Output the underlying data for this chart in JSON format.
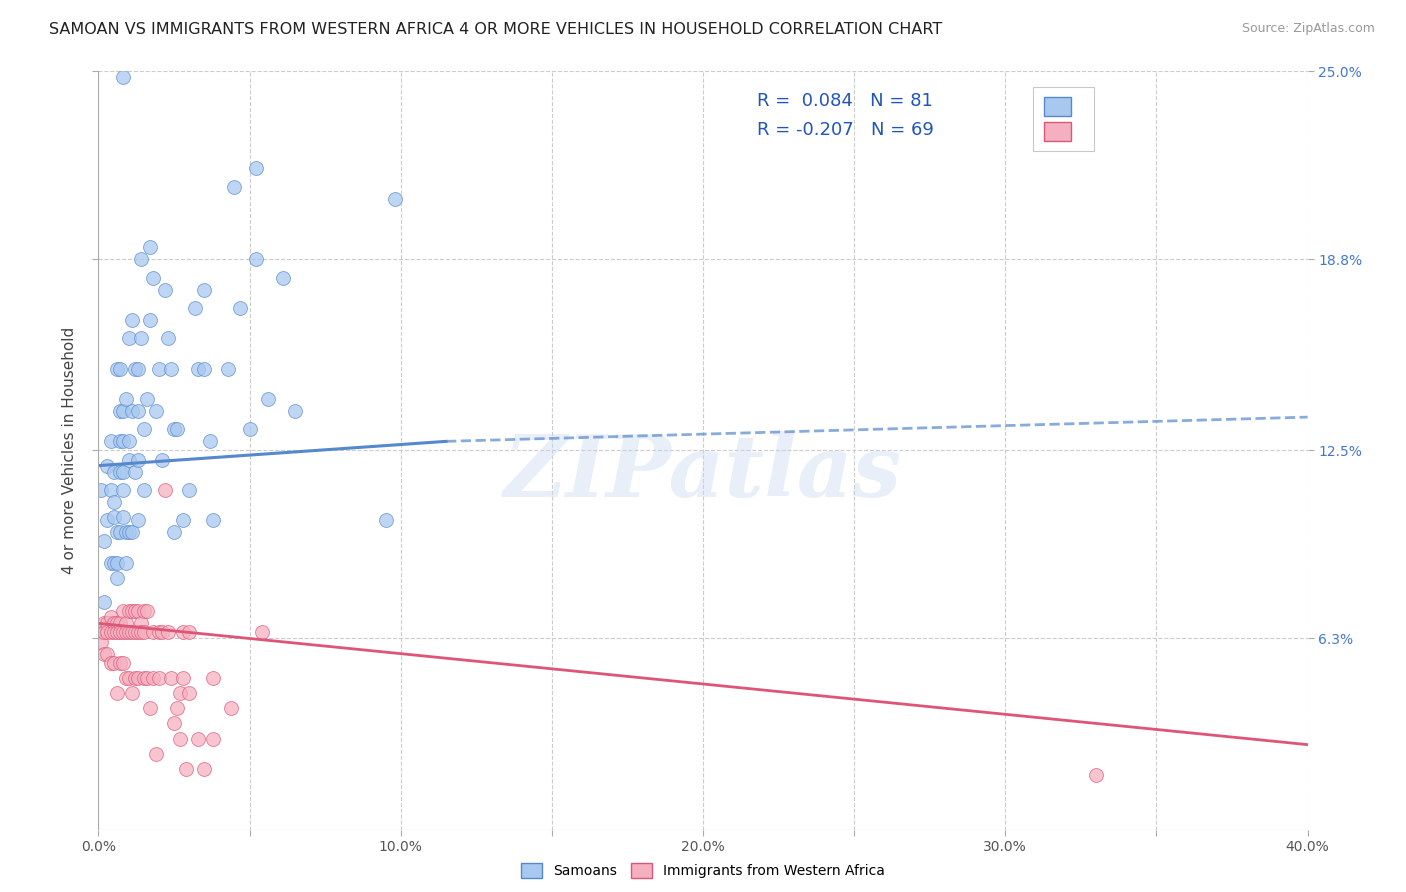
{
  "title": "SAMOAN VS IMMIGRANTS FROM WESTERN AFRICA 4 OR MORE VEHICLES IN HOUSEHOLD CORRELATION CHART",
  "source": "Source: ZipAtlas.com",
  "ylabel": "4 or more Vehicles in Household",
  "xlim": [
    0.0,
    0.4
  ],
  "ylim": [
    0.0,
    0.25
  ],
  "xtick_labels": [
    "0.0%",
    "",
    "10.0%",
    "",
    "20.0%",
    "",
    "30.0%",
    "",
    "40.0%"
  ],
  "xtick_values": [
    0.0,
    0.05,
    0.1,
    0.15,
    0.2,
    0.25,
    0.3,
    0.35,
    0.4
  ],
  "ytick_labels": [
    "6.3%",
    "12.5%",
    "18.8%",
    "25.0%"
  ],
  "ytick_values": [
    0.063,
    0.125,
    0.188,
    0.25
  ],
  "blue_R": 0.084,
  "blue_N": 81,
  "pink_R": -0.207,
  "pink_N": 69,
  "blue_color": "#a8c8f0",
  "pink_color": "#f5b0c0",
  "blue_edge_color": "#5588cc",
  "pink_edge_color": "#dd5577",
  "blue_trend_solid": [
    0.0,
    0.12,
    0.115,
    0.128
  ],
  "blue_trend_dashed": [
    0.115,
    0.128,
    0.4,
    0.136
  ],
  "pink_trend": [
    0.0,
    0.068,
    0.4,
    0.028
  ],
  "watermark": "ZIPatlas",
  "legend_blue_label": "Samoans",
  "legend_pink_label": "Immigrants from Western Africa",
  "background_color": "#ffffff",
  "grid_color": "#cccccc",
  "blue_scatter": [
    [
      0.001,
      0.112
    ],
    [
      0.002,
      0.095
    ],
    [
      0.002,
      0.075
    ],
    [
      0.003,
      0.12
    ],
    [
      0.003,
      0.102
    ],
    [
      0.004,
      0.128
    ],
    [
      0.004,
      0.088
    ],
    [
      0.004,
      0.068
    ],
    [
      0.004,
      0.112
    ],
    [
      0.005,
      0.108
    ],
    [
      0.005,
      0.103
    ],
    [
      0.005,
      0.088
    ],
    [
      0.005,
      0.118
    ],
    [
      0.006,
      0.098
    ],
    [
      0.006,
      0.088
    ],
    [
      0.006,
      0.083
    ],
    [
      0.006,
      0.152
    ],
    [
      0.007,
      0.138
    ],
    [
      0.007,
      0.128
    ],
    [
      0.007,
      0.118
    ],
    [
      0.007,
      0.098
    ],
    [
      0.007,
      0.152
    ],
    [
      0.008,
      0.138
    ],
    [
      0.008,
      0.128
    ],
    [
      0.008,
      0.118
    ],
    [
      0.008,
      0.103
    ],
    [
      0.008,
      0.112
    ],
    [
      0.009,
      0.098
    ],
    [
      0.009,
      0.088
    ],
    [
      0.009,
      0.142
    ],
    [
      0.01,
      0.122
    ],
    [
      0.01,
      0.098
    ],
    [
      0.01,
      0.162
    ],
    [
      0.01,
      0.128
    ],
    [
      0.011,
      0.098
    ],
    [
      0.011,
      0.168
    ],
    [
      0.011,
      0.138
    ],
    [
      0.012,
      0.152
    ],
    [
      0.012,
      0.118
    ],
    [
      0.013,
      0.122
    ],
    [
      0.013,
      0.102
    ],
    [
      0.013,
      0.152
    ],
    [
      0.013,
      0.138
    ],
    [
      0.014,
      0.188
    ],
    [
      0.014,
      0.162
    ],
    [
      0.015,
      0.112
    ],
    [
      0.015,
      0.132
    ],
    [
      0.016,
      0.142
    ],
    [
      0.017,
      0.192
    ],
    [
      0.017,
      0.168
    ],
    [
      0.018,
      0.182
    ],
    [
      0.019,
      0.138
    ],
    [
      0.02,
      0.152
    ],
    [
      0.021,
      0.122
    ],
    [
      0.022,
      0.178
    ],
    [
      0.023,
      0.162
    ],
    [
      0.024,
      0.152
    ],
    [
      0.025,
      0.132
    ],
    [
      0.025,
      0.098
    ],
    [
      0.026,
      0.132
    ],
    [
      0.028,
      0.102
    ],
    [
      0.03,
      0.112
    ],
    [
      0.032,
      0.172
    ],
    [
      0.033,
      0.152
    ],
    [
      0.035,
      0.178
    ],
    [
      0.035,
      0.152
    ],
    [
      0.037,
      0.128
    ],
    [
      0.038,
      0.102
    ],
    [
      0.043,
      0.152
    ],
    [
      0.045,
      0.212
    ],
    [
      0.047,
      0.172
    ],
    [
      0.05,
      0.132
    ],
    [
      0.052,
      0.218
    ],
    [
      0.052,
      0.188
    ],
    [
      0.056,
      0.142
    ],
    [
      0.008,
      0.248
    ],
    [
      0.061,
      0.182
    ],
    [
      0.065,
      0.138
    ],
    [
      0.095,
      0.102
    ],
    [
      0.098,
      0.208
    ]
  ],
  "pink_scatter": [
    [
      0.001,
      0.065
    ],
    [
      0.001,
      0.062
    ],
    [
      0.002,
      0.068
    ],
    [
      0.002,
      0.065
    ],
    [
      0.002,
      0.058
    ],
    [
      0.003,
      0.068
    ],
    [
      0.003,
      0.065
    ],
    [
      0.003,
      0.058
    ],
    [
      0.004,
      0.07
    ],
    [
      0.004,
      0.065
    ],
    [
      0.004,
      0.055
    ],
    [
      0.005,
      0.068
    ],
    [
      0.005,
      0.065
    ],
    [
      0.005,
      0.055
    ],
    [
      0.006,
      0.068
    ],
    [
      0.006,
      0.065
    ],
    [
      0.006,
      0.045
    ],
    [
      0.007,
      0.068
    ],
    [
      0.007,
      0.065
    ],
    [
      0.007,
      0.055
    ],
    [
      0.008,
      0.072
    ],
    [
      0.008,
      0.065
    ],
    [
      0.008,
      0.055
    ],
    [
      0.009,
      0.068
    ],
    [
      0.009,
      0.065
    ],
    [
      0.009,
      0.05
    ],
    [
      0.01,
      0.072
    ],
    [
      0.01,
      0.065
    ],
    [
      0.01,
      0.05
    ],
    [
      0.011,
      0.072
    ],
    [
      0.011,
      0.065
    ],
    [
      0.011,
      0.045
    ],
    [
      0.012,
      0.072
    ],
    [
      0.012,
      0.065
    ],
    [
      0.012,
      0.05
    ],
    [
      0.013,
      0.072
    ],
    [
      0.013,
      0.065
    ],
    [
      0.013,
      0.05
    ],
    [
      0.014,
      0.068
    ],
    [
      0.014,
      0.065
    ],
    [
      0.015,
      0.072
    ],
    [
      0.015,
      0.065
    ],
    [
      0.015,
      0.05
    ],
    [
      0.016,
      0.072
    ],
    [
      0.016,
      0.05
    ],
    [
      0.017,
      0.04
    ],
    [
      0.018,
      0.065
    ],
    [
      0.018,
      0.05
    ],
    [
      0.019,
      0.025
    ],
    [
      0.02,
      0.065
    ],
    [
      0.02,
      0.05
    ],
    [
      0.021,
      0.065
    ],
    [
      0.022,
      0.112
    ],
    [
      0.023,
      0.065
    ],
    [
      0.024,
      0.05
    ],
    [
      0.025,
      0.035
    ],
    [
      0.026,
      0.04
    ],
    [
      0.027,
      0.045
    ],
    [
      0.027,
      0.03
    ],
    [
      0.028,
      0.065
    ],
    [
      0.028,
      0.05
    ],
    [
      0.029,
      0.02
    ],
    [
      0.03,
      0.065
    ],
    [
      0.03,
      0.045
    ],
    [
      0.033,
      0.03
    ],
    [
      0.035,
      0.02
    ],
    [
      0.038,
      0.05
    ],
    [
      0.038,
      0.03
    ],
    [
      0.044,
      0.04
    ],
    [
      0.054,
      0.065
    ],
    [
      0.33,
      0.018
    ]
  ]
}
